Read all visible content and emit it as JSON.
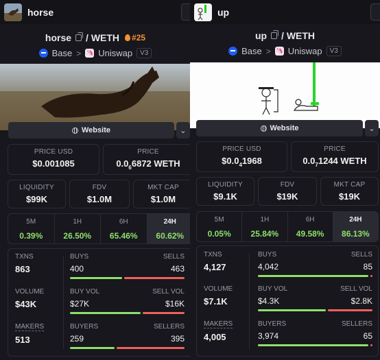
{
  "colors": {
    "buy": "#8ee06b",
    "sell": "#f0605b",
    "rank": "#f5922f",
    "base": "#1f5cf0"
  },
  "panels": [
    {
      "tab_title": "horse",
      "pair_base": "horse",
      "pair_quote": "/ WETH",
      "rank": "#25",
      "chain": "Base",
      "dex": "Uniswap",
      "version": "V3",
      "website_label": "Website",
      "price_usd_label": "PRICE USD",
      "price_usd": "$0.001085",
      "price_label": "PRICE",
      "price_pre": "0.0",
      "price_sub": "6",
      "price_post": "6872 WETH",
      "liquidity_label": "LIQUIDITY",
      "liquidity": "$99K",
      "fdv_label": "FDV",
      "fdv": "$1.0M",
      "mktcap_label": "MKT CAP",
      "mktcap": "$1.0M",
      "timeframes": [
        {
          "label": "5M",
          "value": "0.39%"
        },
        {
          "label": "1H",
          "value": "26.50%"
        },
        {
          "label": "6H",
          "value": "65.46%"
        },
        {
          "label": "24H",
          "value": "60.62%"
        }
      ],
      "txns_label": "TXNS",
      "txns": "863",
      "volume_label": "VOLUME",
      "volume": "$43K",
      "makers_label": "MAKERS",
      "makers": "513",
      "buys_label": "BUYS",
      "buys": "400",
      "sells_label": "SELLS",
      "sells": "463",
      "buys_frac": 0.463,
      "buyvol_label": "BUY VOL",
      "buyvol": "$27K",
      "sellvol_label": "SELL VOL",
      "sellvol": "$16K",
      "buyvol_frac": 0.628,
      "buyers_label": "BUYERS",
      "buyers": "259",
      "sellers_label": "SELLERS",
      "sellers": "395",
      "buyers_frac": 0.396
    },
    {
      "tab_title": "up",
      "pair_base": "up",
      "pair_quote": "/ WETH",
      "chain": "Base",
      "dex": "Uniswap",
      "version": "V3",
      "website_label": "Website",
      "price_usd_label": "PRICE USD",
      "price_usd_pre": "$0.0",
      "price_usd_sub": "4",
      "price_usd_post": "1968",
      "price_label": "PRICE",
      "price_pre": "0.0",
      "price_sub": "7",
      "price_post": "1244 WETH",
      "liquidity_label": "LIQUIDITY",
      "liquidity": "$9.1K",
      "fdv_label": "FDV",
      "fdv": "$19K",
      "mktcap_label": "MKT CAP",
      "mktcap": "$19K",
      "timeframes": [
        {
          "label": "5M",
          "value": "0.05%"
        },
        {
          "label": "1H",
          "value": "25.84%"
        },
        {
          "label": "6H",
          "value": "49.58%"
        },
        {
          "label": "24H",
          "value": "86.13%"
        }
      ],
      "txns_label": "TXNS",
      "txns": "4,127",
      "volume_label": "VOLUME",
      "volume": "$7.1K",
      "makers_label": "MAKERS",
      "makers": "4,005",
      "buys_label": "BUYS",
      "buys": "4,042",
      "sells_label": "SELLS",
      "sells": "85",
      "buys_frac": 0.979,
      "buyvol_label": "BUY VOL",
      "buyvol": "$4.3K",
      "sellvol_label": "SELL VOL",
      "sellvol": "$2.8K",
      "buyvol_frac": 0.606,
      "buyers_label": "BUYERS",
      "buyers": "3,974",
      "sellers_label": "SELLERS",
      "sellers": "65",
      "buyers_frac": 0.984
    }
  ]
}
